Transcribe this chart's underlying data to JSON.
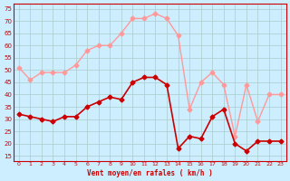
{
  "hours": [
    0,
    1,
    2,
    3,
    4,
    5,
    6,
    7,
    8,
    9,
    10,
    11,
    12,
    13,
    14,
    15,
    16,
    17,
    18,
    19,
    20,
    21,
    22,
    23
  ],
  "vent_moyen": [
    32,
    31,
    30,
    29,
    31,
    31,
    35,
    37,
    39,
    38,
    45,
    47,
    47,
    44,
    18,
    23,
    22,
    31,
    34,
    20,
    17,
    21,
    21,
    21
  ],
  "en_rafales": [
    51,
    46,
    49,
    49,
    49,
    52,
    58,
    60,
    60,
    65,
    71,
    71,
    73,
    71,
    64,
    34,
    45,
    49,
    44,
    23,
    44,
    29,
    40,
    40
  ],
  "color_moyen": "#cc0000",
  "color_rafales": "#ff9999",
  "bg_color": "#cceeff",
  "grid_color": "#aacccc",
  "ylim": [
    13,
    77
  ],
  "yticks": [
    15,
    20,
    25,
    30,
    35,
    40,
    45,
    50,
    55,
    60,
    65,
    70,
    75
  ],
  "xlabel": "Vent moyen/en rafales ( km/h )"
}
